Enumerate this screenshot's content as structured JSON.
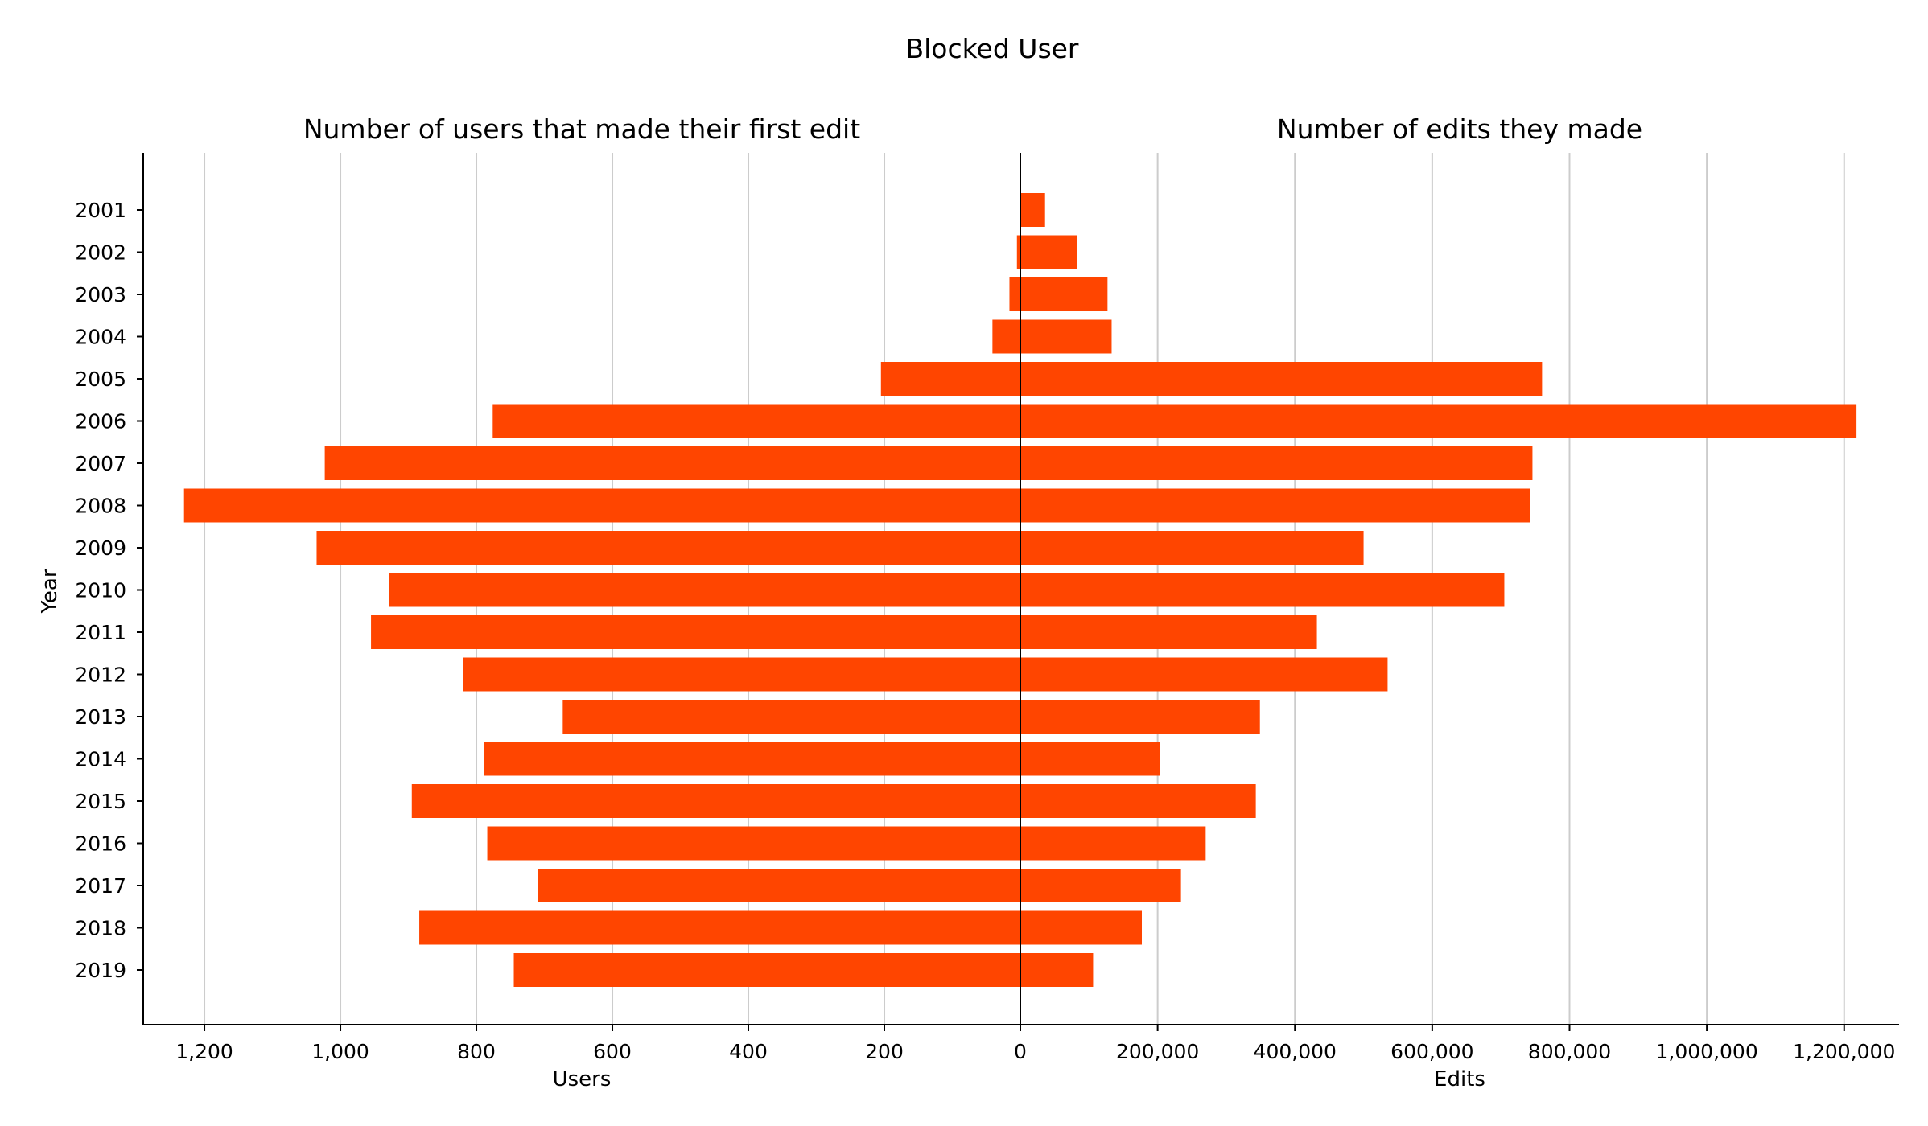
{
  "chart_data": {
    "type": "bar",
    "title": "Blocked User",
    "ylabel": "Year",
    "color": "#ff4500",
    "categories": [
      "2001",
      "2002",
      "2003",
      "2004",
      "2005",
      "2006",
      "2007",
      "2008",
      "2009",
      "2010",
      "2011",
      "2012",
      "2013",
      "2014",
      "2015",
      "2016",
      "2017",
      "2018",
      "2019"
    ],
    "panels": [
      {
        "subtitle": "Number of users that made their first edit",
        "xlabel": "Users",
        "xlim": [
          1290,
          0
        ],
        "ticks": [
          1200,
          1000,
          800,
          600,
          400,
          200,
          0
        ],
        "tick_labels": [
          "1,200",
          "1,000",
          "800",
          "600",
          "400",
          "200",
          "0"
        ],
        "series": [
          {
            "values": [
              0,
              5,
              16,
              41,
              205,
              776,
              1023,
              1230,
              1035,
              928,
              955,
              820,
              673,
              789,
              895,
              784,
              709,
              884,
              745
            ]
          }
        ]
      },
      {
        "subtitle": "Number of edits they made",
        "xlabel": "Edits",
        "xlim": [
          0,
          1280000
        ],
        "ticks": [
          200000,
          400000,
          600000,
          800000,
          1000000,
          1200000
        ],
        "tick_labels": [
          "200,000",
          "400,000",
          "600,000",
          "800,000",
          "1,000,000",
          "1,200,000"
        ],
        "series": [
          {
            "values": [
              36000,
              83000,
              127000,
              133000,
              760000,
              1218000,
              746000,
              743000,
              500000,
              705000,
              432000,
              535000,
              349000,
              203000,
              343000,
              270000,
              234000,
              177000,
              106000
            ]
          }
        ]
      }
    ]
  }
}
